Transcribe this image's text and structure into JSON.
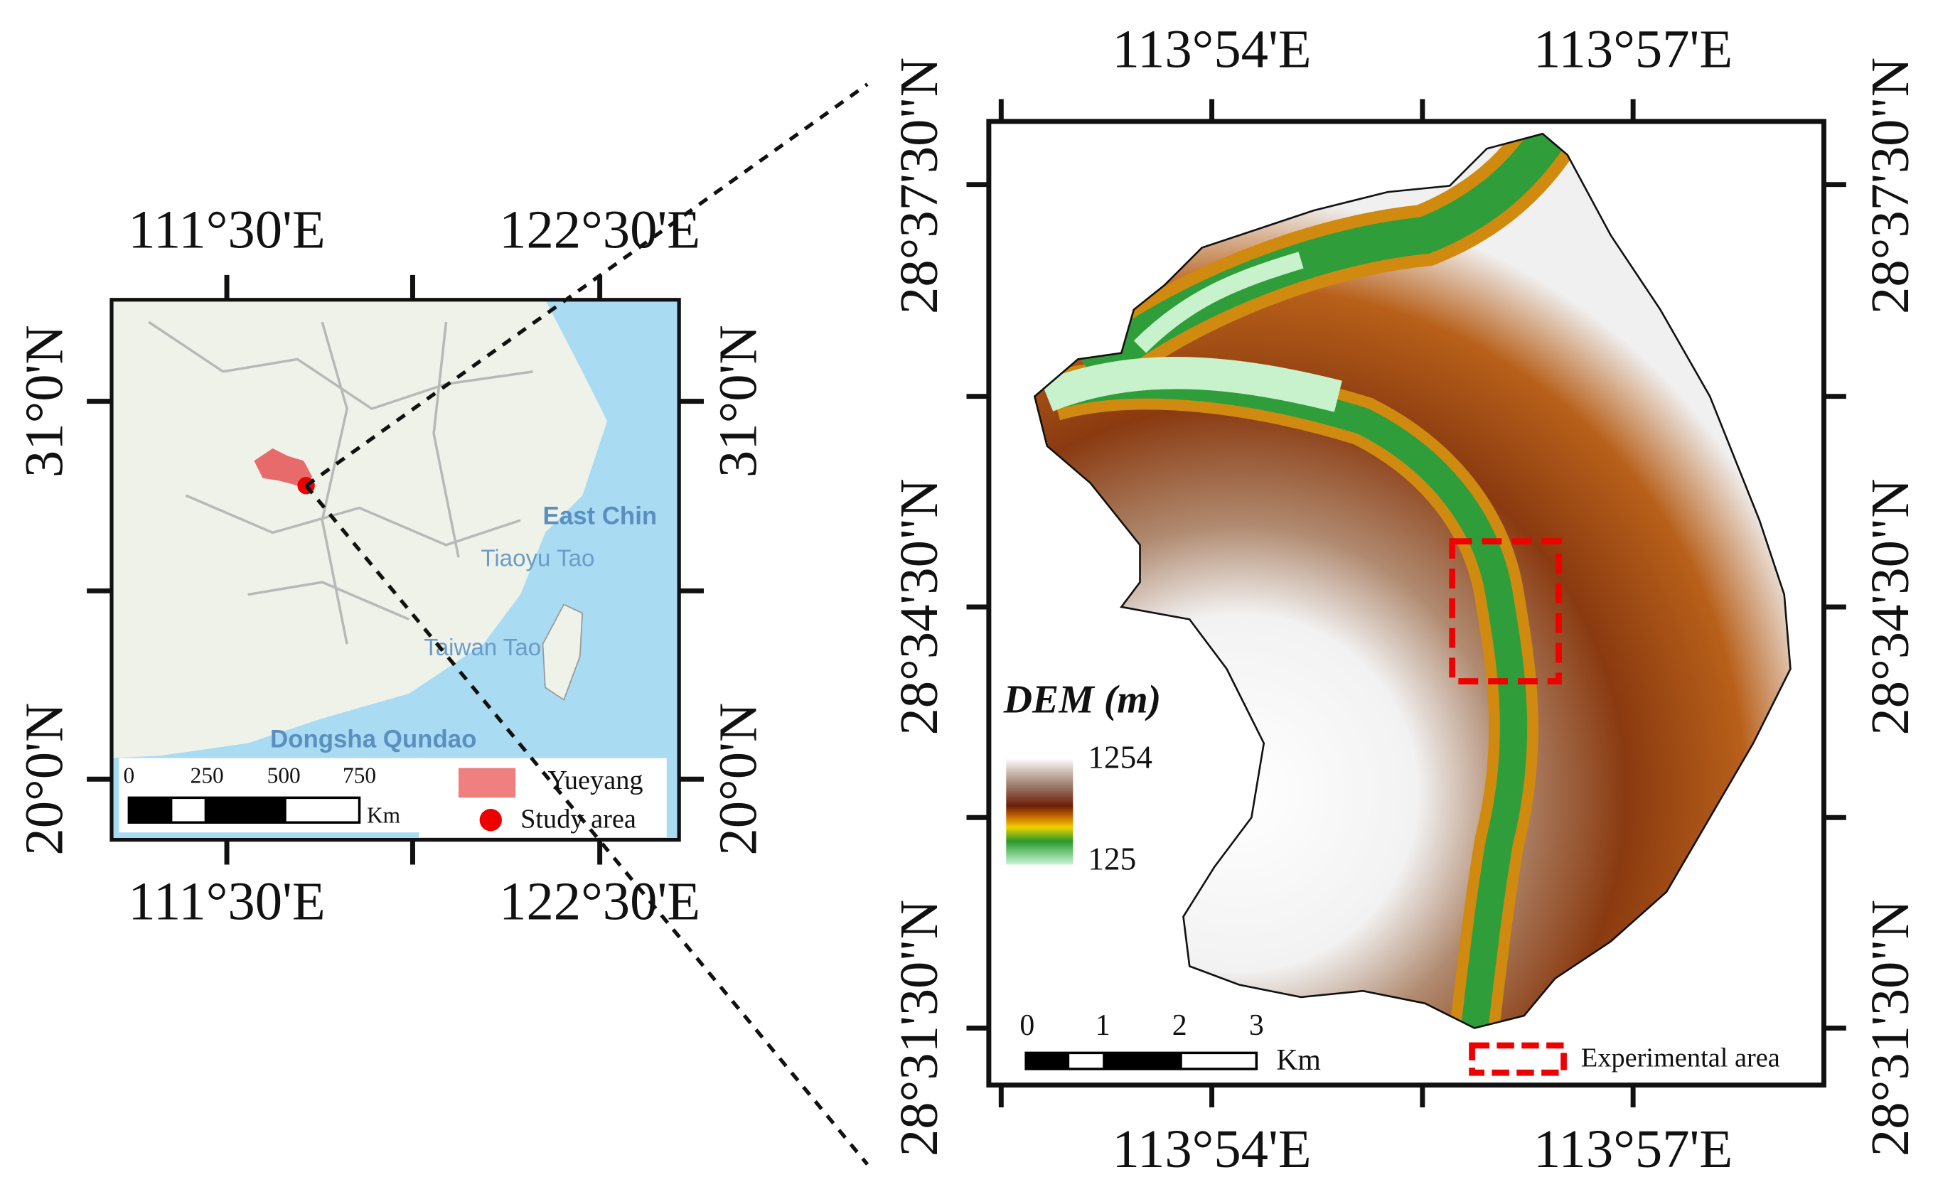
{
  "left_map": {
    "top_labels": [
      "111°30'E",
      "122°30'E"
    ],
    "bottom_labels": [
      "111°30'E",
      "122°30'E"
    ],
    "left_labels": [
      "31°0'N",
      "20°0'N"
    ],
    "right_labels": [
      "31°0'N",
      "20°0'N"
    ],
    "place_labels": [
      "East Chin",
      "Tiaoyu Tao",
      "Taiwan Tao",
      "Dongsha Qundao"
    ],
    "scale_bar": {
      "ticks": [
        "0",
        "250",
        "500",
        "750"
      ],
      "unit": "Km"
    },
    "legend": [
      "Yueyang",
      "Study area"
    ]
  },
  "right_map": {
    "top_labels": [
      "113°54'E",
      "113°57'E"
    ],
    "bottom_labels": [
      "113°54'E",
      "113°57'E"
    ],
    "left_labels": [
      "28°37'30\"N",
      "28°34'30\"N",
      "28°31'30\"N"
    ],
    "right_labels": [
      "28°37'30\"N",
      "28°34'30\"N",
      "28°31'30\"N"
    ],
    "dem_legend": {
      "title": "DEM (m)",
      "max": "1254",
      "min": "125"
    },
    "scale_bar": {
      "ticks": [
        "0",
        "1",
        "2",
        "3"
      ],
      "unit": "Km"
    },
    "legend": [
      "Experimental area"
    ]
  }
}
